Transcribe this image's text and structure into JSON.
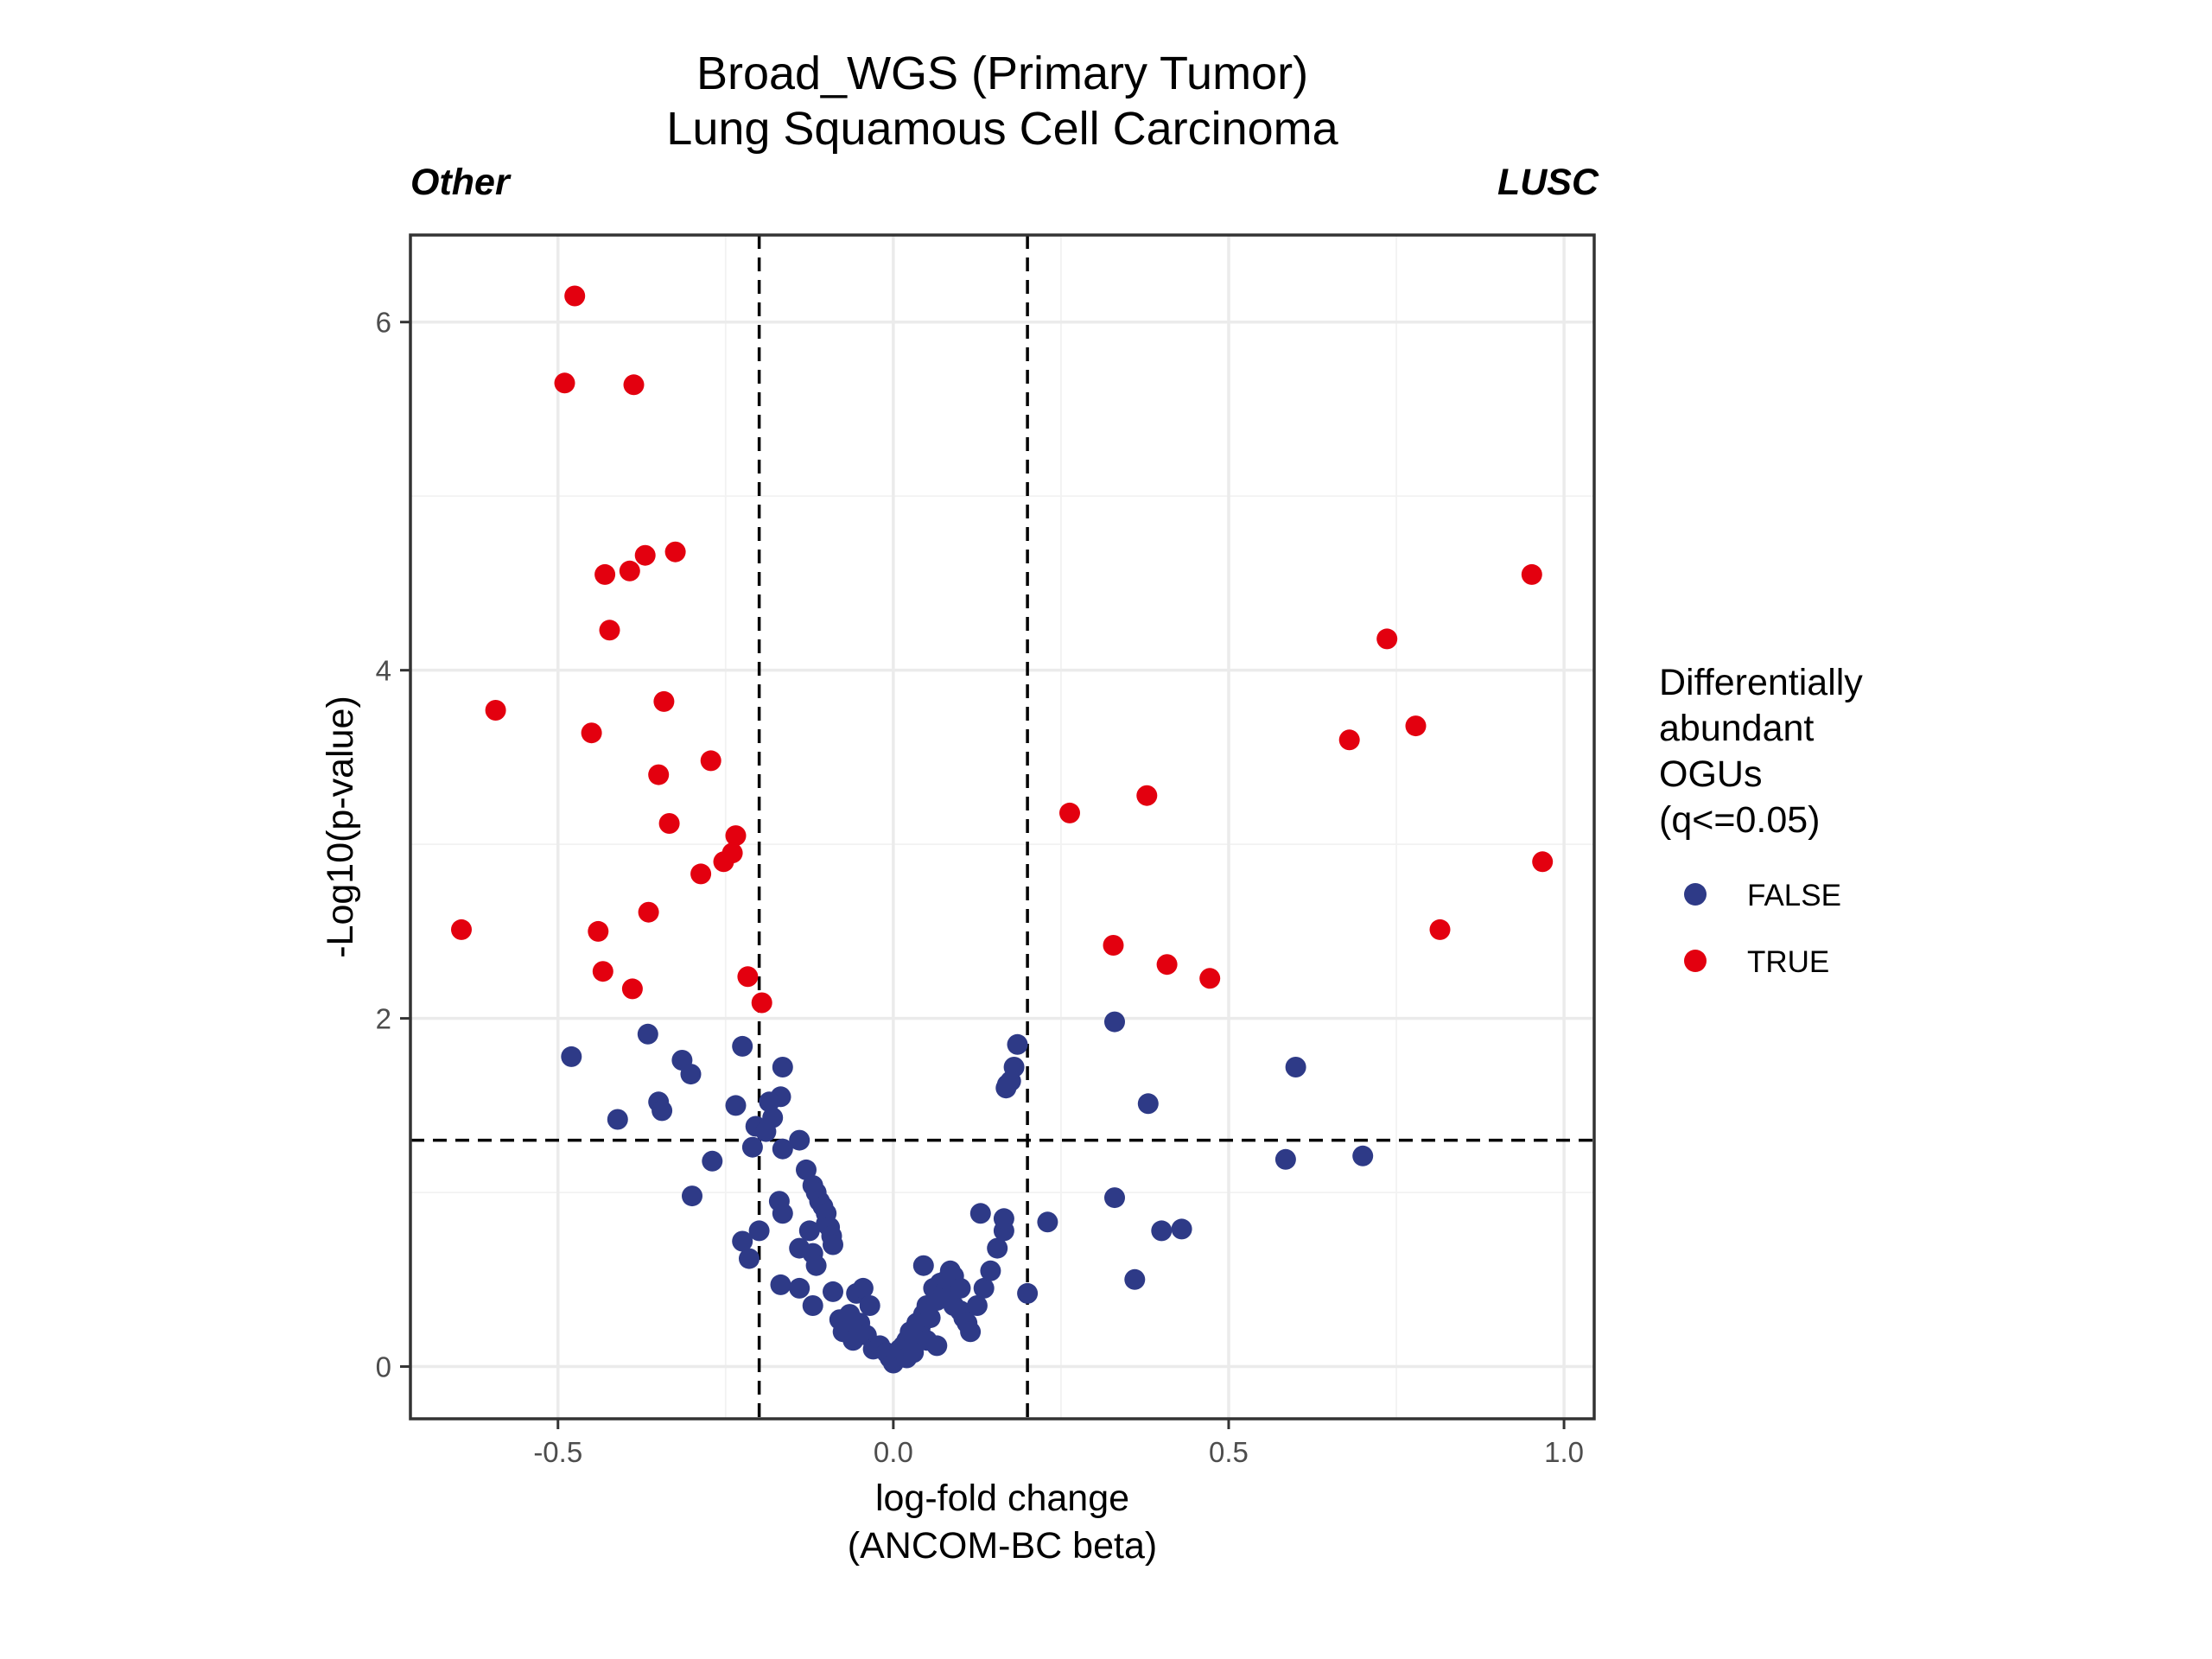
{
  "chart_data": {
    "type": "scatter",
    "title": [
      "Broad_WGS (Primary Tumor)",
      "Lung Squamous Cell Carcinoma"
    ],
    "left_annotation": "Other",
    "right_annotation": "LUSC",
    "xlabel": [
      "log-fold change",
      "(ANCOM-BC beta)"
    ],
    "ylabel": "-Log10(p-value)",
    "xlim": [
      -0.72,
      1.045
    ],
    "ylim": [
      -0.3,
      6.5
    ],
    "xticks": [
      -0.5,
      0.0,
      0.5,
      1.0
    ],
    "xtick_labels": [
      "-0.5",
      "0.0",
      "0.5",
      "1.0"
    ],
    "yticks": [
      0,
      2,
      4,
      6
    ],
    "ytick_labels": [
      "0",
      "2",
      "4",
      "6"
    ],
    "grid": true,
    "thresholds": {
      "vertical": [
        -0.2,
        0.2
      ],
      "horizontal": 1.3
    },
    "legend": {
      "title": [
        "Differentially",
        "abundant",
        "OGUs",
        "(q<=0.05)"
      ],
      "placement": "right",
      "entries": [
        {
          "label": "FALSE",
          "color": "#2e3a87"
        },
        {
          "label": "TRUE",
          "color": "#e3000f"
        }
      ]
    },
    "series": [
      {
        "name": "TRUE",
        "color": "#e3000f",
        "x": [
          -0.475,
          -0.49,
          -0.387,
          -0.325,
          -0.37,
          -0.393,
          -0.43,
          -0.423,
          -0.593,
          -0.342,
          -0.45,
          -0.272,
          -0.35,
          -0.334,
          -0.235,
          -0.24,
          -0.253,
          -0.287,
          -0.365,
          -0.644,
          -0.44,
          -0.433,
          -0.389,
          -0.217,
          -0.196,
          0.952,
          0.736,
          0.779,
          0.68,
          0.378,
          0.263,
          0.968,
          0.815,
          0.328,
          0.408,
          0.472
        ],
        "y": [
          6.15,
          5.65,
          5.64,
          4.68,
          4.66,
          4.57,
          4.55,
          4.23,
          3.77,
          3.82,
          3.64,
          3.48,
          3.4,
          3.12,
          3.05,
          2.95,
          2.9,
          2.83,
          2.61,
          2.51,
          2.5,
          2.27,
          2.17,
          2.24,
          2.09,
          4.55,
          4.18,
          3.68,
          3.6,
          3.28,
          3.18,
          2.9,
          2.51,
          2.42,
          2.31,
          2.23
        ]
      },
      {
        "name": "FALSE",
        "color": "#2e3a87",
        "x": [
          -0.48,
          -0.366,
          -0.315,
          -0.302,
          -0.35,
          -0.345,
          -0.411,
          -0.27,
          -0.3,
          -0.225,
          -0.165,
          -0.235,
          -0.168,
          -0.185,
          -0.18,
          -0.205,
          -0.19,
          -0.21,
          -0.165,
          -0.14,
          -0.13,
          -0.12,
          -0.115,
          -0.11,
          -0.105,
          -0.1,
          -0.1,
          -0.095,
          -0.092,
          -0.09,
          -0.17,
          -0.165,
          -0.2,
          -0.225,
          -0.215,
          -0.125,
          -0.14,
          -0.12,
          -0.115,
          -0.168,
          -0.14,
          -0.12,
          -0.09,
          -0.08,
          -0.065,
          -0.055,
          -0.045,
          -0.035,
          -0.075,
          -0.06,
          -0.05,
          -0.04,
          -0.03,
          -0.02,
          -0.01,
          -0.005,
          0.0,
          0.005,
          0.01,
          0.015,
          0.02,
          0.025,
          0.03,
          0.035,
          0.04,
          0.045,
          0.05,
          0.055,
          0.06,
          0.065,
          0.07,
          0.075,
          0.08,
          0.085,
          0.09,
          0.1,
          0.105,
          0.11,
          0.115,
          0.125,
          0.135,
          0.145,
          0.155,
          0.165,
          0.05,
          0.065,
          0.02,
          0.03,
          0.045,
          0.09,
          0.1,
          0.13,
          0.165,
          0.2,
          0.23,
          0.185,
          0.18,
          0.175,
          0.17,
          0.168,
          0.33,
          0.38,
          0.33,
          0.4,
          0.43,
          0.36,
          0.6,
          0.585,
          0.7
        ],
        "y": [
          1.78,
          1.91,
          1.76,
          1.68,
          1.52,
          1.47,
          1.42,
          1.18,
          0.98,
          1.84,
          1.72,
          1.5,
          1.55,
          1.52,
          1.43,
          1.38,
          1.35,
          1.26,
          1.25,
          1.3,
          1.13,
          1.04,
          1.0,
          0.95,
          0.92,
          0.88,
          0.82,
          0.8,
          0.75,
          0.7,
          0.95,
          0.88,
          0.78,
          0.72,
          0.62,
          0.78,
          0.68,
          0.65,
          0.58,
          0.47,
          0.45,
          0.35,
          0.43,
          0.27,
          0.3,
          0.42,
          0.45,
          0.35,
          0.2,
          0.15,
          0.25,
          0.18,
          0.1,
          0.12,
          0.08,
          0.05,
          0.02,
          0.06,
          0.1,
          0.12,
          0.15,
          0.2,
          0.18,
          0.25,
          0.22,
          0.3,
          0.35,
          0.28,
          0.45,
          0.38,
          0.48,
          0.42,
          0.5,
          0.55,
          0.35,
          0.32,
          0.28,
          0.25,
          0.2,
          0.35,
          0.45,
          0.55,
          0.68,
          0.78,
          0.15,
          0.12,
          0.05,
          0.08,
          0.58,
          0.52,
          0.45,
          0.88,
          0.85,
          0.42,
          0.83,
          1.85,
          1.72,
          1.64,
          1.62,
          1.6,
          1.98,
          1.51,
          0.97,
          0.78,
          0.79,
          0.5,
          1.72,
          1.19,
          1.21
        ]
      }
    ]
  }
}
